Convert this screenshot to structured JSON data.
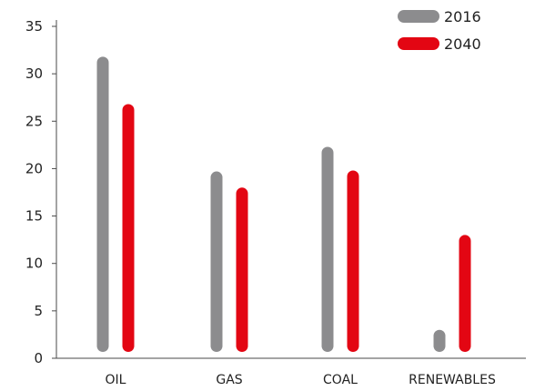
{
  "chart_data": {
    "type": "bar",
    "categories": [
      "OIL",
      "GAS",
      "COAL",
      "RENEWABLES"
    ],
    "series": [
      {
        "name": "2016",
        "values": [
          31.8,
          19.7,
          22.3,
          3.0
        ],
        "color": "#8c8c8e"
      },
      {
        "name": "2040",
        "values": [
          26.8,
          18.0,
          19.8,
          13.0
        ],
        "color": "#e30613"
      }
    ],
    "yticks": [
      0,
      5,
      10,
      15,
      20,
      25,
      30,
      35
    ],
    "ylim": [
      0,
      35
    ],
    "legend_position": "top-right",
    "grid": false,
    "bar_style": "rounded-thin"
  }
}
